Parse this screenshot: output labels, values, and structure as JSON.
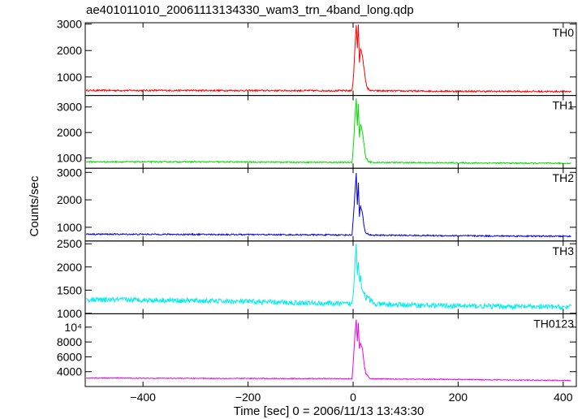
{
  "title": "ae401011010_20061113134330_wam3_trn_4band_long.qdp",
  "chart_data": {
    "type": "line",
    "title": "ae401011010_20061113134330_wam3_trn_4band_long.qdp",
    "xlabel": "Time [sec] 0 = 2006/11/13 13:43:30",
    "ylabel": "Counts/sec",
    "xlim": [
      -510,
      425
    ],
    "x_ticks": [
      -400,
      -200,
      0,
      200,
      400
    ],
    "x_tick_labels": [
      "−400",
      "−200",
      "0",
      "200",
      "400"
    ],
    "panels": [
      {
        "name": "TH0",
        "color": "#ff0000",
        "ylim": [
          300,
          3050
        ],
        "y_ticks": [
          1000,
          2000,
          3000
        ],
        "y_tick_labels": [
          "1000",
          "2000",
          "3000"
        ],
        "baseline": [
          [
            -510,
            490
          ],
          [
            -300,
            490
          ],
          [
            0,
            480
          ],
          [
            200,
            460
          ],
          [
            425,
            450
          ]
        ],
        "noise": 30,
        "burst": [
          [
            -2,
            480
          ],
          [
            1,
            1100
          ],
          [
            4,
            2300
          ],
          [
            6,
            2950
          ],
          [
            8,
            2100
          ],
          [
            10,
            3000
          ],
          [
            12,
            1500
          ],
          [
            14,
            2050
          ],
          [
            16,
            1950
          ],
          [
            18,
            1800
          ],
          [
            21,
            1300
          ],
          [
            24,
            800
          ],
          [
            28,
            550
          ],
          [
            34,
            490
          ]
        ]
      },
      {
        "name": "TH1",
        "color": "#00dd00",
        "ylim": [
          600,
          3450
        ],
        "y_ticks": [
          1000,
          2000,
          3000
        ],
        "y_tick_labels": [
          "1000",
          "2000",
          "3000"
        ],
        "baseline": [
          [
            -510,
            850
          ],
          [
            -300,
            850
          ],
          [
            0,
            830
          ],
          [
            200,
            810
          ],
          [
            425,
            790
          ]
        ],
        "noise": 25,
        "burst": [
          [
            -2,
            840
          ],
          [
            1,
            1600
          ],
          [
            4,
            2800
          ],
          [
            6,
            3300
          ],
          [
            8,
            2300
          ],
          [
            10,
            3100
          ],
          [
            12,
            1800
          ],
          [
            14,
            2300
          ],
          [
            16,
            2200
          ],
          [
            18,
            2000
          ],
          [
            21,
            1500
          ],
          [
            24,
            1000
          ],
          [
            30,
            860
          ],
          [
            34,
            840
          ]
        ]
      },
      {
        "name": "TH2",
        "color": "#0000dd",
        "ylim": [
          500,
          3150
        ],
        "y_ticks": [
          1000,
          2000,
          3000
        ],
        "y_tick_labels": [
          "1000",
          "2000",
          "3000"
        ],
        "baseline": [
          [
            -510,
            750
          ],
          [
            -300,
            740
          ],
          [
            0,
            720
          ],
          [
            200,
            690
          ],
          [
            425,
            670
          ]
        ],
        "noise": 25,
        "burst": [
          [
            -2,
            740
          ],
          [
            1,
            1500
          ],
          [
            4,
            2400
          ],
          [
            6,
            3000
          ],
          [
            8,
            1800
          ],
          [
            10,
            2600
          ],
          [
            12,
            1400
          ],
          [
            14,
            1800
          ],
          [
            16,
            1600
          ],
          [
            18,
            1500
          ],
          [
            21,
            1000
          ],
          [
            24,
            800
          ],
          [
            30,
            740
          ],
          [
            34,
            720
          ]
        ]
      },
      {
        "name": "TH3",
        "color": "#00eeee",
        "ylim": [
          990,
          2560
        ],
        "y_ticks": [
          1000,
          1500,
          2000,
          2500
        ],
        "y_tick_labels": [
          "1000",
          "1500",
          "2000",
          "2500"
        ],
        "baseline": [
          [
            -510,
            1290
          ],
          [
            -400,
            1290
          ],
          [
            -200,
            1250
          ],
          [
            0,
            1200
          ],
          [
            200,
            1160
          ],
          [
            425,
            1130
          ]
        ],
        "noise": 55,
        "burst": [
          [
            -2,
            1200
          ],
          [
            1,
            1500
          ],
          [
            4,
            2200
          ],
          [
            6,
            2550
          ],
          [
            8,
            1900
          ],
          [
            10,
            2100
          ],
          [
            12,
            1700
          ],
          [
            14,
            1800
          ],
          [
            16,
            1600
          ],
          [
            20,
            1450
          ],
          [
            25,
            1350
          ],
          [
            32,
            1280
          ],
          [
            40,
            1230
          ]
        ]
      },
      {
        "name": "TH0123",
        "color": "#ee00ee",
        "ylim": [
          2000,
          11800
        ],
        "y_ticks": [
          4000,
          6000,
          8000,
          10000
        ],
        "y_tick_labels": [
          "4000",
          "6000",
          "8000",
          "10⁴"
        ],
        "baseline": [
          [
            -510,
            3150
          ],
          [
            -300,
            3100
          ],
          [
            0,
            3050
          ],
          [
            200,
            2950
          ],
          [
            425,
            2800
          ]
        ],
        "noise": 60,
        "burst": [
          [
            -2,
            3100
          ],
          [
            1,
            6000
          ],
          [
            4,
            9500
          ],
          [
            6,
            11000
          ],
          [
            8,
            8000
          ],
          [
            10,
            10500
          ],
          [
            12,
            7000
          ],
          [
            14,
            7800
          ],
          [
            16,
            7500
          ],
          [
            18,
            7000
          ],
          [
            21,
            5000
          ],
          [
            24,
            3800
          ],
          [
            30,
            3200
          ],
          [
            34,
            3100
          ]
        ]
      }
    ]
  }
}
